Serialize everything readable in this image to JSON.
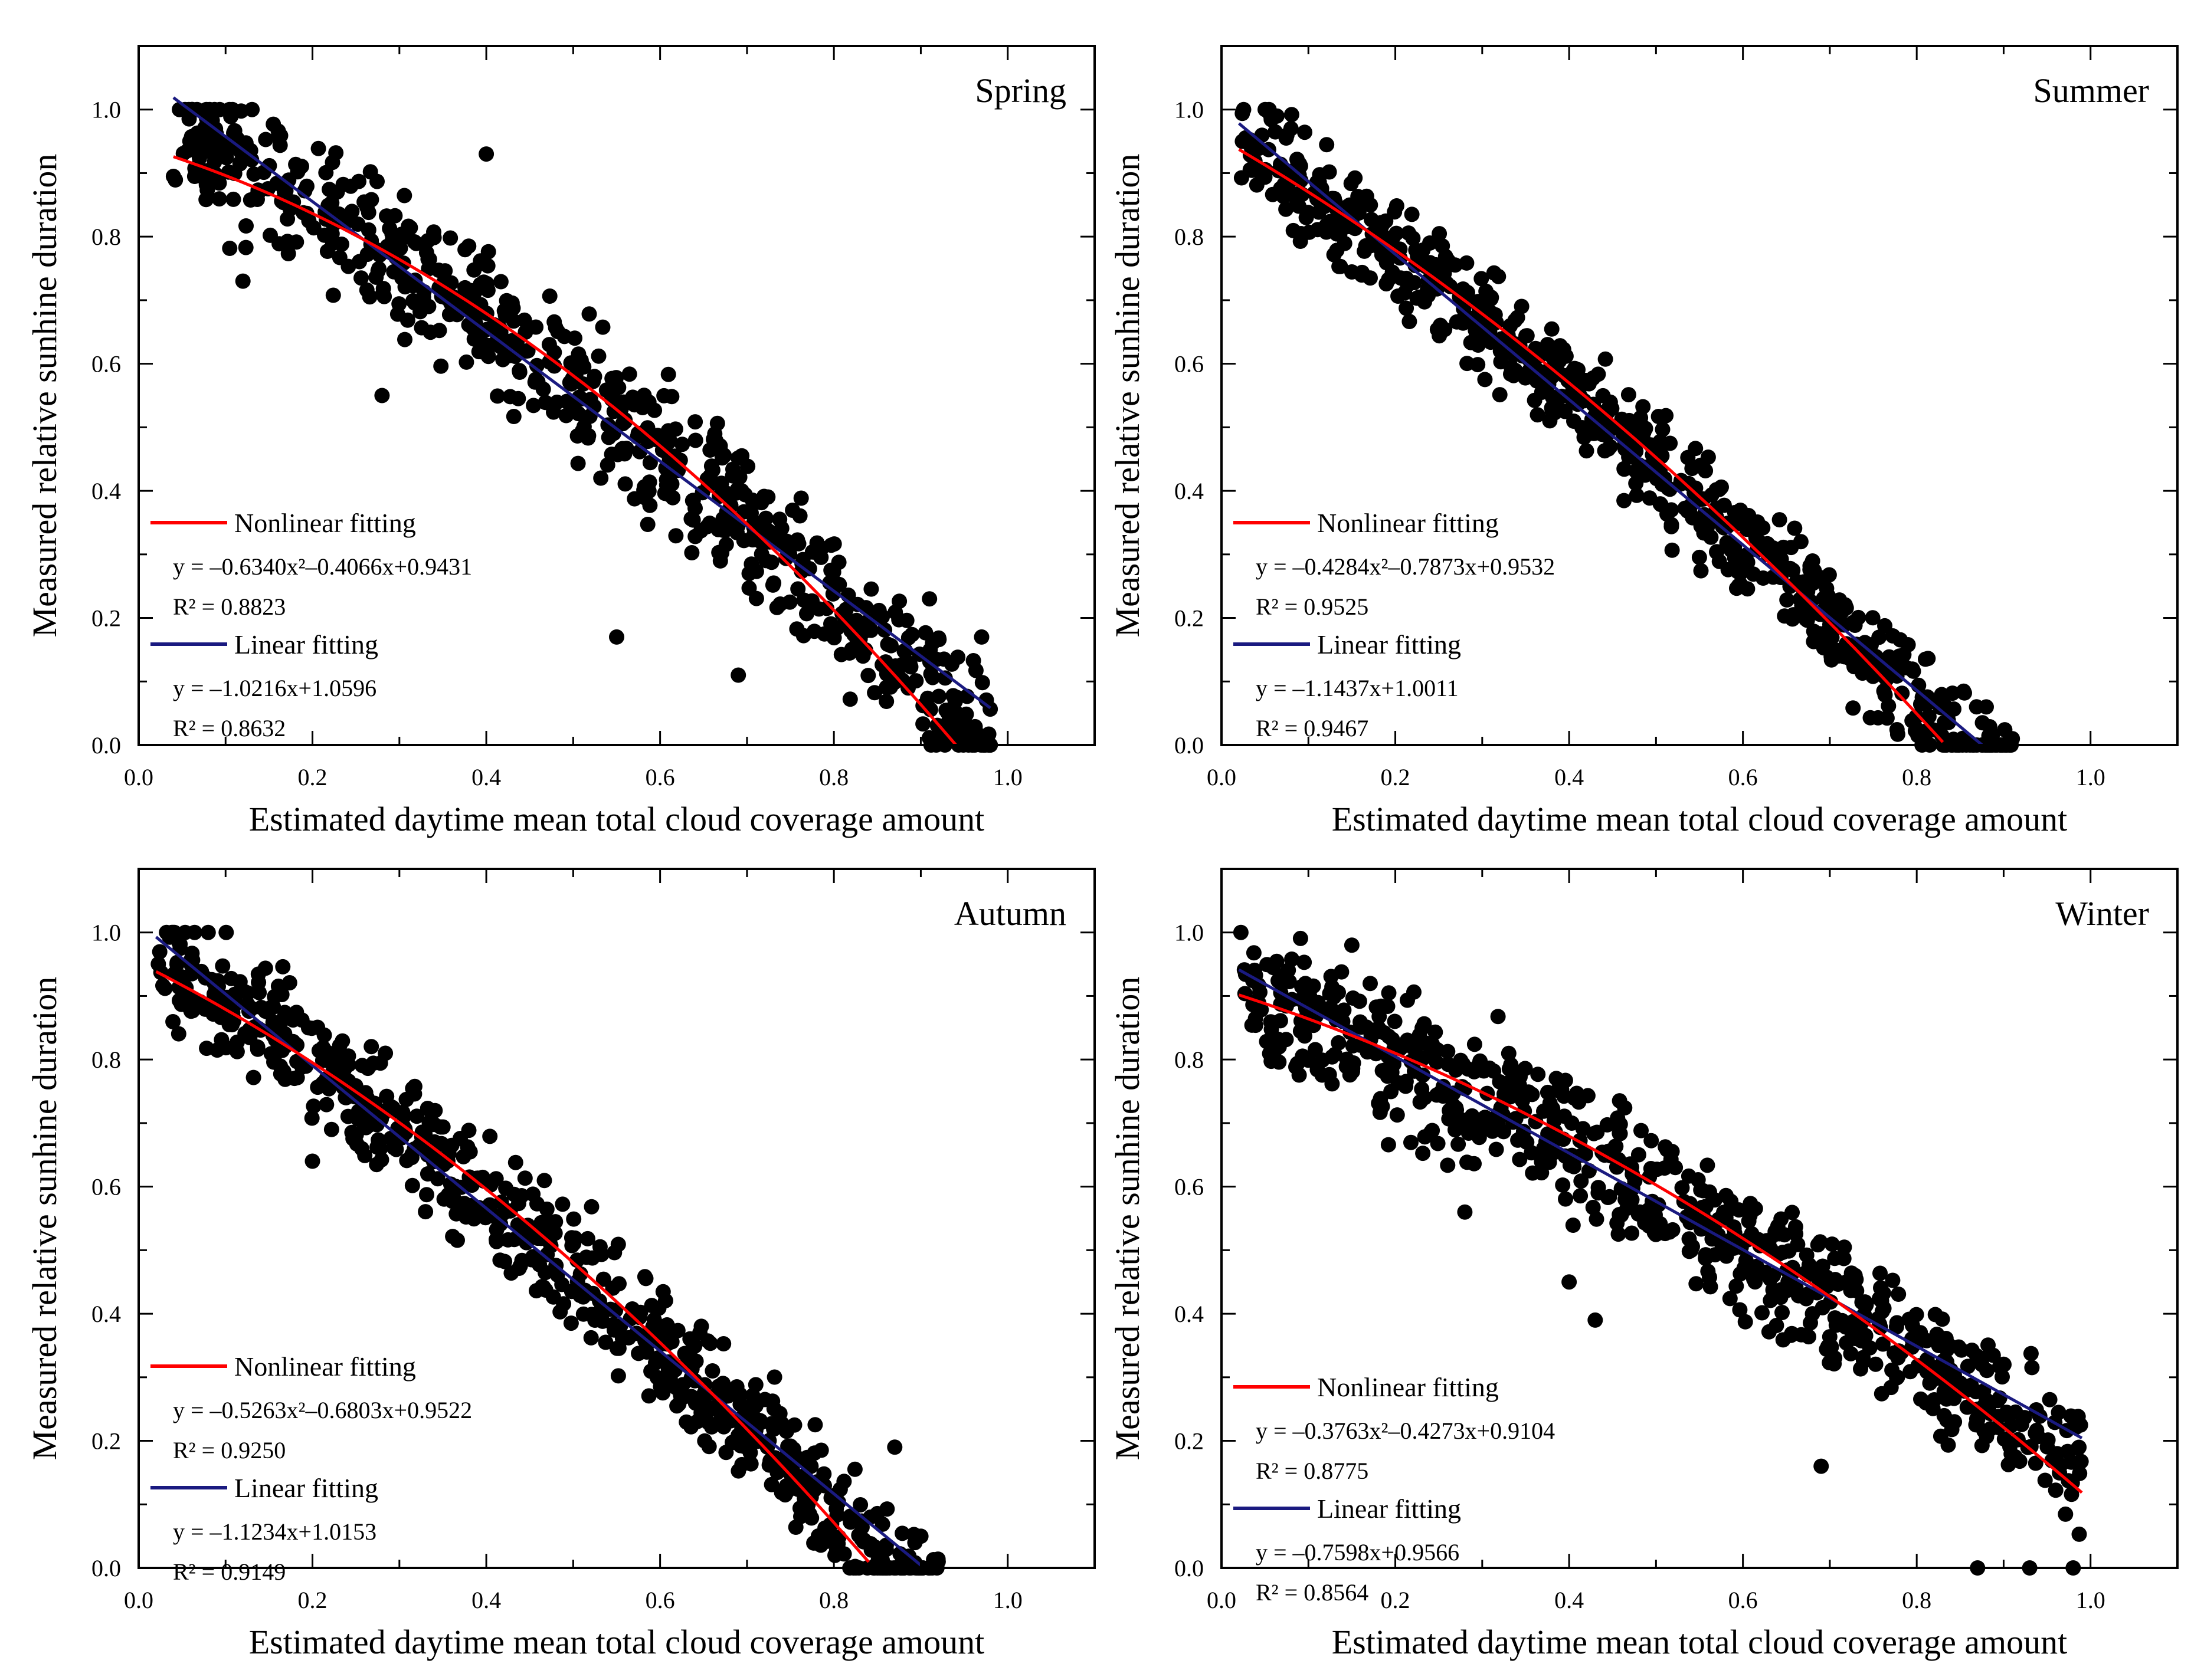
{
  "chart_data": [
    {
      "type": "scatter",
      "title": "Spring",
      "xlabel": "Estimated daytime mean total cloud coverage amount",
      "ylabel": "Measured relative sunhine duration",
      "xlim": [
        0.0,
        1.1
      ],
      "ylim": [
        0.0,
        1.1
      ],
      "xticks": [
        "0.0",
        "0.2",
        "0.4",
        "0.6",
        "0.8",
        "1.0"
      ],
      "yticks": [
        "0.0",
        "0.2",
        "0.4",
        "0.6",
        "0.8",
        "1.0"
      ],
      "scatter": {
        "x_range": [
          0.04,
          0.98
        ],
        "spread": 0.075,
        "count": 700,
        "seed": 11,
        "outliers": [
          [
            0.4,
            0.93
          ],
          [
            0.55,
            0.17
          ],
          [
            0.28,
            0.55
          ],
          [
            0.12,
            0.73
          ],
          [
            0.69,
            0.11
          ],
          [
            0.91,
            0.23
          ],
          [
            0.97,
            0.17
          ]
        ]
      },
      "nonlinear": {
        "label": "Nonlinear fitting",
        "equation": "y = –0.6340x²–0.4066x+0.9431",
        "r2": "R² = 0.8823",
        "a": -0.634,
        "b": -0.4066,
        "c": 0.9431,
        "x_range": [
          0.04,
          0.94
        ],
        "color": "#ff0000"
      },
      "linear": {
        "label": "Linear fitting",
        "equation": "y = –1.0216x+1.0596",
        "r2": "R² = 0.8632",
        "a": 0,
        "b": -1.0216,
        "c": 1.0596,
        "x_range": [
          0.04,
          0.98
        ],
        "color": "#1a1a80"
      }
    },
    {
      "type": "scatter",
      "title": "Summer",
      "xlabel": "Estimated daytime mean total cloud coverage amount",
      "ylabel": "Measured relative sunhine duration",
      "xlim": [
        0.0,
        1.1
      ],
      "ylim": [
        0.0,
        1.1
      ],
      "xticks": [
        "0.0",
        "0.2",
        "0.4",
        "0.6",
        "0.8",
        "1.0"
      ],
      "yticks": [
        "0.0",
        "0.2",
        "0.4",
        "0.6",
        "0.8",
        "1.0"
      ],
      "scatter": {
        "x_range": [
          0.02,
          0.91
        ],
        "spread": 0.06,
        "count": 700,
        "seed": 23,
        "outliers": [
          [
            0.08,
            0.97
          ],
          [
            0.78,
            0.14
          ],
          [
            0.88,
            0.06
          ],
          [
            0.91,
            0.01
          ]
        ]
      },
      "nonlinear": {
        "label": "Nonlinear fitting",
        "equation": "y = –0.4284x²–0.7873x+0.9532",
        "r2": "R² = 0.9525",
        "a": -0.4284,
        "b": -0.7873,
        "c": 0.9532,
        "x_range": [
          0.02,
          0.83
        ],
        "color": "#ff0000"
      },
      "linear": {
        "label": "Linear fitting",
        "equation": "y = –1.1437x+1.0011",
        "r2": "R² = 0.9467",
        "a": 0,
        "b": -1.1437,
        "c": 1.0011,
        "x_range": [
          0.02,
          0.875
        ],
        "color": "#1a1a80"
      }
    },
    {
      "type": "scatter",
      "title": "Autumn",
      "xlabel": "Estimated daytime mean total cloud coverage amount",
      "ylabel": "Measured relative sunhine duration",
      "xlim": [
        0.0,
        1.1
      ],
      "ylim": [
        0.0,
        1.1
      ],
      "xticks": [
        "0.0",
        "0.2",
        "0.4",
        "0.6",
        "0.8",
        "1.0"
      ],
      "yticks": [
        "0.0",
        "0.2",
        "0.4",
        "0.6",
        "0.8",
        "1.0"
      ],
      "scatter": {
        "x_range": [
          0.02,
          0.92
        ],
        "spread": 0.065,
        "count": 700,
        "seed": 37,
        "outliers": [
          [
            0.08,
            1.0
          ],
          [
            0.2,
            0.64
          ],
          [
            0.87,
            0.19
          ],
          [
            0.92,
            0.01
          ]
        ]
      },
      "nonlinear": {
        "label": "Nonlinear fitting",
        "equation": "y = –0.5263x²–0.6803x+0.9522",
        "r2": "R² = 0.9250",
        "a": -0.5263,
        "b": -0.6803,
        "c": 0.9522,
        "x_range": [
          0.02,
          0.84
        ],
        "color": "#ff0000"
      },
      "linear": {
        "label": "Linear fitting",
        "equation": "y = –1.1234x+1.0153",
        "r2": "R² = 0.9149",
        "a": 0,
        "b": -1.1234,
        "c": 1.0153,
        "x_range": [
          0.02,
          0.9
        ],
        "color": "#1a1a80"
      }
    },
    {
      "type": "scatter",
      "title": "Winter",
      "xlabel": "Estimated daytime mean total cloud coverage amount",
      "ylabel": "Measured relative sunhine duration",
      "xlim": [
        0.0,
        1.1
      ],
      "ylim": [
        0.0,
        1.1
      ],
      "xticks": [
        "0.0",
        "0.2",
        "0.4",
        "0.6",
        "0.8",
        "1.0"
      ],
      "yticks": [
        "0.0",
        "0.2",
        "0.4",
        "0.6",
        "0.8",
        "1.0"
      ],
      "scatter": {
        "x_range": [
          0.02,
          0.99
        ],
        "spread": 0.075,
        "count": 700,
        "seed": 53,
        "outliers": [
          [
            0.15,
            0.98
          ],
          [
            0.28,
            0.56
          ],
          [
            0.69,
            0.16
          ],
          [
            0.93,
            0.0
          ],
          [
            0.98,
            0.0
          ],
          [
            0.87,
            0.0
          ],
          [
            0.4,
            0.45
          ],
          [
            0.43,
            0.39
          ]
        ]
      },
      "nonlinear": {
        "label": "Nonlinear fitting",
        "equation": "y = –0.3763x²–0.4273x+0.9104",
        "r2": "R² = 0.8775",
        "a": -0.3763,
        "b": -0.4273,
        "c": 0.9104,
        "x_range": [
          0.02,
          0.99
        ],
        "color": "#ff0000"
      },
      "linear": {
        "label": "Linear fitting",
        "equation": "y = –0.7598x+0.9566",
        "r2": "R² = 0.8564",
        "a": 0,
        "b": -0.7598,
        "c": 0.9566,
        "x_range": [
          0.02,
          0.99
        ],
        "color": "#1a1a80"
      }
    }
  ]
}
